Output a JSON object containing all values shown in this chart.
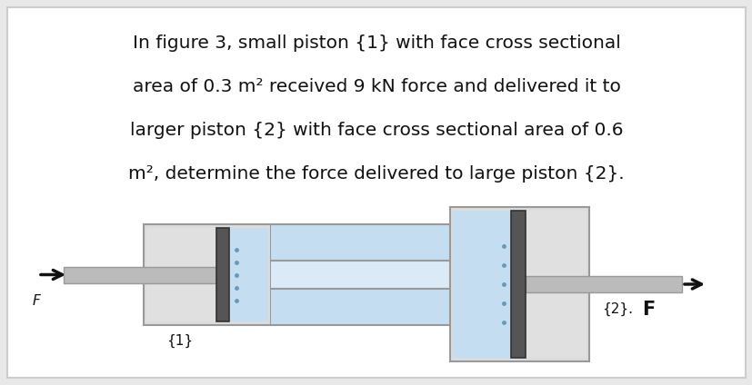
{
  "bg_color": "#e8e8e8",
  "card_color": "#f2f2f2",
  "text_lines": [
    "In figure 3, small piston {1} with face cross sectional",
    "area of 0.3 m² received 9 kN force and delivered it to",
    "larger piston {2} with face cross sectional area of 0.6",
    "m², determine the force delivered to large piston {2}."
  ],
  "text_fontsize": 14.5,
  "text_color": "#111111",
  "fluid_color": "#c5ddf0",
  "cylinder_fill": "#dcdcdc",
  "cylinder_border": "#999999",
  "piston_fill": "#555555",
  "piston_border": "#333333",
  "rod_fill": "#bbbbbb",
  "rod_border": "#999999",
  "channel_fill": "#c5ddf0",
  "channel_wall": "#aaaaaa",
  "arrow_color": "#111111",
  "label_color": "#111111",
  "label_fontsize": 11
}
